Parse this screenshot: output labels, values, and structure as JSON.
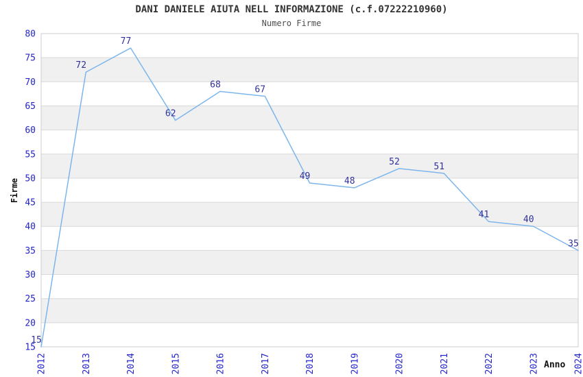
{
  "chart_data": {
    "type": "line",
    "title": "DANI DANIELE AIUTA NELL INFORMAZIONE (c.f.07222210960)",
    "subtitle": "Numero Firme",
    "xlabel": "Anno",
    "ylabel": "Firme",
    "categories": [
      "2012",
      "2013",
      "2014",
      "2015",
      "2016",
      "2017",
      "2018",
      "2019",
      "2020",
      "2021",
      "2022",
      "2023",
      "2024"
    ],
    "values": [
      15,
      72,
      77,
      62,
      68,
      67,
      49,
      48,
      52,
      51,
      41,
      40,
      35
    ],
    "ylim": [
      15,
      80
    ],
    "ytick_step": 5,
    "grid": true,
    "legend": "none",
    "plot_bands_alternating": true,
    "colors": {
      "line": "#7cb5ec",
      "tick_label": "#2323cc",
      "data_label": "#31319b",
      "band": "#f0f0f0",
      "gridline": "#d9d9d9",
      "plot_border": "#cccccc",
      "title": "#333333",
      "subtitle": "#4d4d4d",
      "axis_title": "#111111",
      "background": "#ffffff"
    }
  }
}
